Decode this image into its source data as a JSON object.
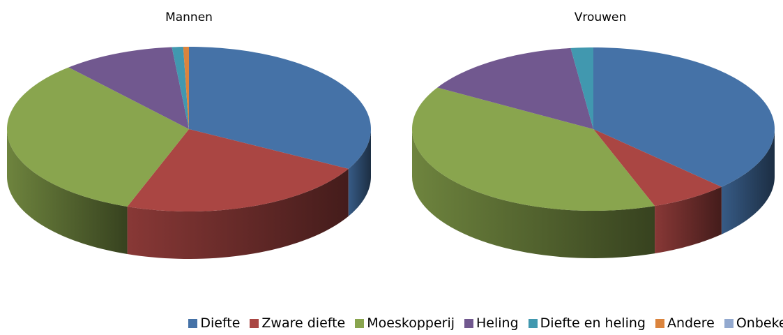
{
  "chart_data": [
    {
      "type": "pie",
      "title": "Mannen",
      "categories": [
        "Diefte",
        "Zware diefte",
        "Moeskopperij",
        "Heling",
        "Diefte en heling",
        "Andere",
        "Onbekend"
      ],
      "values": [
        33,
        22.5,
        33,
        10,
        1,
        0.5,
        0
      ],
      "colors": [
        "#4572a7",
        "#aa4643",
        "#89a54e",
        "#71588f",
        "#4198af",
        "#db843d",
        "#93a9cf"
      ]
    },
    {
      "type": "pie",
      "title": "Vrouwen",
      "categories": [
        "Diefte",
        "Zware diefte",
        "Moeskopperij",
        "Heling",
        "Diefte en heling",
        "Andere",
        "Onbekend"
      ],
      "values": [
        37.5,
        7,
        39,
        14.5,
        2,
        0,
        0
      ],
      "colors": [
        "#4572a7",
        "#aa4643",
        "#89a54e",
        "#71588f",
        "#4198af",
        "#db843d",
        "#93a9cf"
      ]
    }
  ]
}
